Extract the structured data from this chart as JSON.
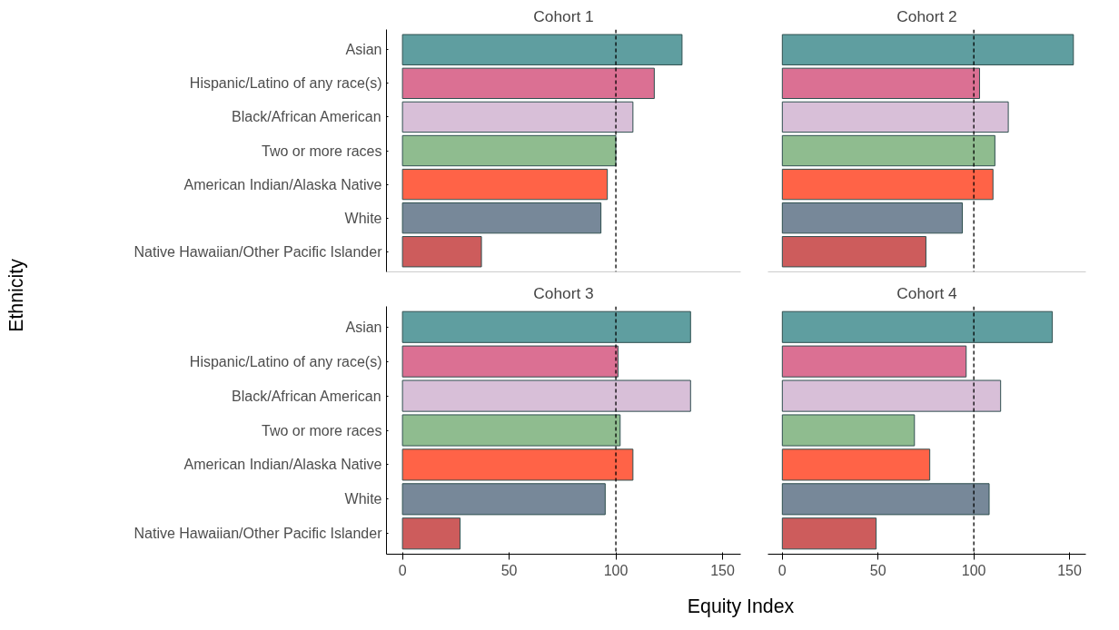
{
  "chart_data": [
    {
      "type": "bar",
      "orientation": "horizontal",
      "title": "Cohort 1",
      "ylabel": "Ethnicity",
      "categories": [
        "Asian",
        "Hispanic/Latino of any race(s)",
        "Black/African American",
        "Two or more races",
        "American Indian/Alaska Native",
        "White",
        "Native Hawaiian/Other Pacific Islander"
      ],
      "values": [
        131,
        118,
        108,
        100,
        96,
        93,
        37
      ],
      "colors": [
        "#5f9ea0",
        "#db7093",
        "#d8bfd8",
        "#8fbc8f",
        "#ff6347",
        "#778899",
        "#cd5c5c"
      ],
      "xlim": [
        -7.5,
        158.5
      ],
      "xticks": [
        0,
        50,
        100,
        150
      ],
      "ref_lines": [
        {
          "axis": "x",
          "value": 100,
          "line_style": "dashed",
          "color": "#000000"
        }
      ],
      "tick_labels": "y",
      "grid": false
    },
    {
      "type": "bar",
      "orientation": "horizontal",
      "title": "Cohort 2",
      "categories": [
        null,
        null,
        null,
        null,
        null,
        null,
        null
      ],
      "values": [
        152,
        103,
        118,
        111,
        110,
        94,
        75
      ],
      "colors": [
        "#5f9ea0",
        "#db7093",
        "#d8bfd8",
        "#8fbc8f",
        "#ff6347",
        "#778899",
        "#cd5c5c"
      ],
      "xlim": [
        -7.5,
        158.5
      ],
      "xticks": [
        0,
        50,
        100,
        150
      ],
      "ref_lines": [
        {
          "axis": "x",
          "value": 100,
          "line_style": "dashed",
          "color": "#000000"
        }
      ],
      "tick_labels": false,
      "grid": false
    },
    {
      "type": "bar",
      "orientation": "horizontal",
      "title": "Cohort 3",
      "xlabel": "Equity Index",
      "categories": [
        "Asian",
        "Hispanic/Latino of any race(s)",
        "Black/African American",
        "Two or more races",
        "American Indian/Alaska Native",
        "White",
        "Native Hawaiian/Other Pacific Islander"
      ],
      "values": [
        135,
        101,
        135,
        102,
        108,
        95,
        27
      ],
      "colors": [
        "#5f9ea0",
        "#db7093",
        "#d8bfd8",
        "#8fbc8f",
        "#ff6347",
        "#778899",
        "#cd5c5c"
      ],
      "xlim": [
        -7.5,
        158.5
      ],
      "xticks": [
        0,
        50,
        100,
        150
      ],
      "ref_lines": [
        {
          "axis": "x",
          "value": 100,
          "line_style": "dashed",
          "color": "#000000"
        }
      ],
      "grid": false
    },
    {
      "type": "bar",
      "orientation": "horizontal",
      "title": "Cohort 4",
      "categories": [
        null,
        null,
        null,
        null,
        null,
        null,
        null
      ],
      "values": [
        141,
        96,
        114,
        69,
        77,
        108,
        49
      ],
      "colors": [
        "#5f9ea0",
        "#db7093",
        "#d8bfd8",
        "#8fbc8f",
        "#ff6347",
        "#778899",
        "#cd5c5c"
      ],
      "xlim": [
        -7.5,
        158.5
      ],
      "xticks": [
        0,
        50,
        100,
        150
      ],
      "ref_lines": [
        {
          "axis": "x",
          "value": 100,
          "line_style": "dashed",
          "color": "#000000"
        }
      ],
      "tick_labels": "x",
      "grid": false
    }
  ]
}
